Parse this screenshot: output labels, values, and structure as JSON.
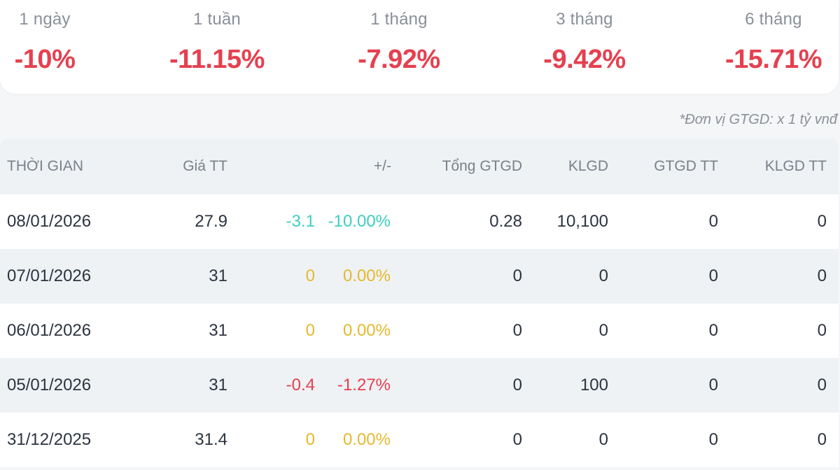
{
  "colors": {
    "down": "#e5404f",
    "floor": "#3ecfbe",
    "unchanged": "#e5b92e"
  },
  "summary": [
    {
      "label": "1 ngày",
      "value": "-10%"
    },
    {
      "label": "1 tuần",
      "value": "-11.15%"
    },
    {
      "label": "1 tháng",
      "value": "-7.92%"
    },
    {
      "label": "3 tháng",
      "value": "-9.42%"
    },
    {
      "label": "6 tháng",
      "value": "-15.71%"
    }
  ],
  "unit_note": "*Đơn vị GTGD: x 1 tỷ vnđ",
  "table": {
    "headers": {
      "date": "THỜI GIAN",
      "price": "Giá TT",
      "change": "+/-",
      "total": "Tổng GTGD",
      "klgd": "KLGD",
      "gtgdtt": "GTGD TT",
      "klgdtt": "KLGD TT"
    },
    "rows": [
      {
        "date": "08/01/2026",
        "price": "27.9",
        "change": "-3.1",
        "pct": "-10.00%",
        "trend": "floor",
        "total": "0.28",
        "klgd": "10,100",
        "gtgdtt": "0",
        "klgdtt": "0"
      },
      {
        "date": "07/01/2026",
        "price": "31",
        "change": "0",
        "pct": "0.00%",
        "trend": "unchanged",
        "total": "0",
        "klgd": "0",
        "gtgdtt": "0",
        "klgdtt": "0"
      },
      {
        "date": "06/01/2026",
        "price": "31",
        "change": "0",
        "pct": "0.00%",
        "trend": "unchanged",
        "total": "0",
        "klgd": "0",
        "gtgdtt": "0",
        "klgdtt": "0"
      },
      {
        "date": "05/01/2026",
        "price": "31",
        "change": "-0.4",
        "pct": "-1.27%",
        "trend": "down",
        "total": "0",
        "klgd": "100",
        "gtgdtt": "0",
        "klgdtt": "0"
      },
      {
        "date": "31/12/2025",
        "price": "31.4",
        "change": "0",
        "pct": "0.00%",
        "trend": "unchanged",
        "total": "0",
        "klgd": "0",
        "gtgdtt": "0",
        "klgdtt": "0"
      }
    ]
  }
}
